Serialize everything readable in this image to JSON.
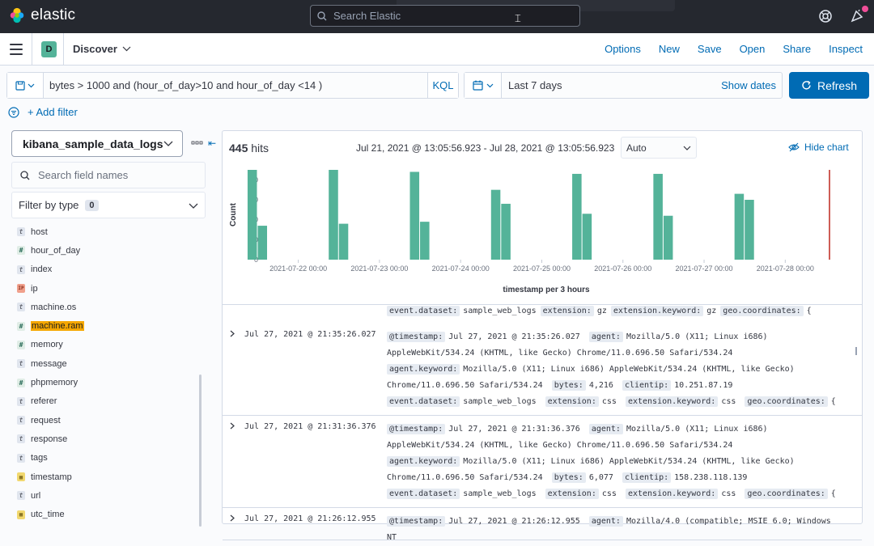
{
  "header": {
    "brand": "elastic",
    "search_placeholder": "Search Elastic"
  },
  "nav": {
    "space_letter": "D",
    "breadcrumb": "Discover",
    "links": [
      "Options",
      "New",
      "Save",
      "Open",
      "Share",
      "Inspect"
    ]
  },
  "query": {
    "text": "bytes > 1000 and (hour_of_day>10 and hour_of_day <14  )",
    "language": "KQL",
    "add_filter": "+ Add filter"
  },
  "time": {
    "range_label": "Last 7 days",
    "show_dates": "Show dates",
    "refresh": "Refresh"
  },
  "sidebar": {
    "index_pattern": "kibana_sample_data_logs",
    "search_placeholder": "Search field names",
    "filter_by_type": "Filter by type",
    "filter_count": "0",
    "fields": [
      {
        "name": "host",
        "type": "t"
      },
      {
        "name": "hour_of_day",
        "type": "#"
      },
      {
        "name": "index",
        "type": "t"
      },
      {
        "name": "ip",
        "type": "ip"
      },
      {
        "name": "machine.os",
        "type": "t"
      },
      {
        "name": "machine.ram",
        "type": "#"
      },
      {
        "name": "memory",
        "type": "#"
      },
      {
        "name": "message",
        "type": "t"
      },
      {
        "name": "phpmemory",
        "type": "#"
      },
      {
        "name": "referer",
        "type": "t"
      },
      {
        "name": "request",
        "type": "t"
      },
      {
        "name": "response",
        "type": "t"
      },
      {
        "name": "tags",
        "type": "t"
      },
      {
        "name": "timestamp",
        "type": "date"
      },
      {
        "name": "url",
        "type": "t"
      },
      {
        "name": "utc_time",
        "type": "date"
      }
    ]
  },
  "results": {
    "hits_count": "445",
    "hits_label": "hits",
    "range": "Jul 21, 2021 @ 13:05:56.923 - Jul 28, 2021 @ 13:05:56.923",
    "interval": "Auto",
    "hide_chart": "Hide chart"
  },
  "chart_data": {
    "type": "bar",
    "ylabel": "Count",
    "xlabel": "timestamp per 3 hours",
    "ylim": [
      0,
      45
    ],
    "yticks": [
      0,
      10,
      20,
      30,
      40
    ],
    "xticks": [
      "2021-07-22 00:00",
      "2021-07-23 00:00",
      "2021-07-24 00:00",
      "2021-07-25 00:00",
      "2021-07-26 00:00",
      "2021-07-27 00:00",
      "2021-07-28 00:00"
    ],
    "bars": [
      {
        "x": "2021-07-21 09:00",
        "value": 45
      },
      {
        "x": "2021-07-21 12:00",
        "value": 17
      },
      {
        "x": "2021-07-22 09:00",
        "value": 45
      },
      {
        "x": "2021-07-22 12:00",
        "value": 18
      },
      {
        "x": "2021-07-23 09:00",
        "value": 44
      },
      {
        "x": "2021-07-23 12:00",
        "value": 19
      },
      {
        "x": "2021-07-24 09:00",
        "value": 35
      },
      {
        "x": "2021-07-24 12:00",
        "value": 28
      },
      {
        "x": "2021-07-25 09:00",
        "value": 43
      },
      {
        "x": "2021-07-25 12:00",
        "value": 23
      },
      {
        "x": "2021-07-26 09:00",
        "value": 43
      },
      {
        "x": "2021-07-26 12:00",
        "value": 22
      },
      {
        "x": "2021-07-27 09:00",
        "value": 33
      },
      {
        "x": "2021-07-27 12:00",
        "value": 30
      }
    ],
    "bar_color": "#54b399",
    "now_marker": "2021-07-28 13:05"
  },
  "docs": {
    "partial_row": [
      {
        "k": "event.dataset:",
        "v": "sample_web_logs"
      },
      {
        "k": "extension:",
        "v": "gz"
      },
      {
        "k": "extension.keyword:",
        "v": "gz"
      },
      {
        "k": "geo.coordinates:",
        "v": "{"
      }
    ],
    "rows": [
      {
        "time": "Jul 27, 2021 @ 21:35:26.027",
        "fields": [
          {
            "k": "@timestamp:",
            "v": "Jul 27, 2021 @ 21:35:26.027"
          },
          {
            "k": "agent:",
            "v": "Mozilla/5.0 (X11; Linux i686) AppleWebKit/534.24 (KHTML, like Gecko) Chrome/11.0.696.50 Safari/534.24"
          },
          {
            "k": "agent.keyword:",
            "v": "Mozilla/5.0 (X11; Linux i686) AppleWebKit/534.24 (KHTML, like Gecko) Chrome/11.0.696.50 Safari/534.24"
          },
          {
            "k": "bytes:",
            "v": "4,216"
          },
          {
            "k": "clientip:",
            "v": "10.251.87.19"
          },
          {
            "k": "event.dataset:",
            "v": "sample_web_logs"
          },
          {
            "k": "extension:",
            "v": "css"
          },
          {
            "k": "extension.keyword:",
            "v": "css"
          },
          {
            "k": "geo.coordinates:",
            "v": "{"
          }
        ]
      },
      {
        "time": "Jul 27, 2021 @ 21:31:36.376",
        "fields": [
          {
            "k": "@timestamp:",
            "v": "Jul 27, 2021 @ 21:31:36.376"
          },
          {
            "k": "agent:",
            "v": "Mozilla/5.0 (X11; Linux i686) AppleWebKit/534.24 (KHTML, like Gecko) Chrome/11.0.696.50 Safari/534.24"
          },
          {
            "k": "agent.keyword:",
            "v": "Mozilla/5.0 (X11; Linux i686) AppleWebKit/534.24 (KHTML, like Gecko) Chrome/11.0.696.50 Safari/534.24"
          },
          {
            "k": "bytes:",
            "v": "6,077"
          },
          {
            "k": "clientip:",
            "v": "158.238.118.139"
          },
          {
            "k": "event.dataset:",
            "v": "sample_web_logs"
          },
          {
            "k": "extension:",
            "v": "css"
          },
          {
            "k": "extension.keyword:",
            "v": "css"
          },
          {
            "k": "geo.coordinates:",
            "v": "{"
          }
        ]
      },
      {
        "time": "Jul 27, 2021 @ 21:26:12.955",
        "fields": [
          {
            "k": "@timestamp:",
            "v": "Jul 27, 2021 @ 21:26:12.955"
          },
          {
            "k": "agent:",
            "v": "Mozilla/4.0 (compatible; MSIE 6.0; Windows NT"
          }
        ]
      }
    ]
  }
}
